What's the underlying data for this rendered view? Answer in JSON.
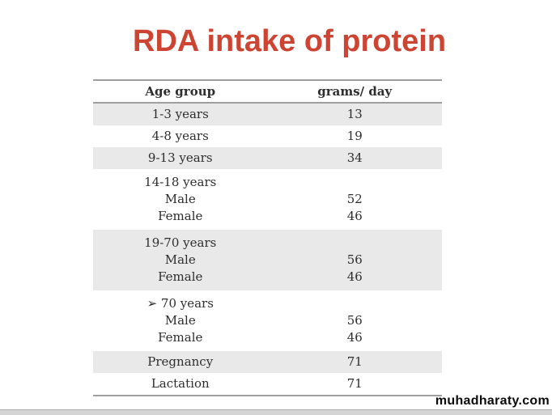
{
  "slide": {
    "title": "RDA intake of protein",
    "watermark": "muhadharaty.com",
    "title_color": "#cd4433",
    "stripe_color": "#e9e9e9",
    "rule_color": "#9e9e9e"
  },
  "table": {
    "columns": [
      "Age group",
      "grams/ day"
    ],
    "rows": [
      {
        "lines": [
          {
            "label": "1-3 years",
            "value": "13"
          }
        ]
      },
      {
        "lines": [
          {
            "label": "4-8 years",
            "value": "19"
          }
        ]
      },
      {
        "lines": [
          {
            "label": "9-13 years",
            "value": "34"
          }
        ]
      },
      {
        "lines": [
          {
            "label": "14-18 years",
            "value": ""
          },
          {
            "label": "Male",
            "value": "52"
          },
          {
            "label": "Female",
            "value": "46"
          }
        ]
      },
      {
        "lines": [
          {
            "label": "19-70 years",
            "value": ""
          },
          {
            "label": "Male",
            "value": "56"
          },
          {
            "label": "Female",
            "value": "46"
          }
        ]
      },
      {
        "lines": [
          {
            "label": "➢ 70 years",
            "value": ""
          },
          {
            "label": "Male",
            "value": "56"
          },
          {
            "label": "Female",
            "value": "46"
          }
        ]
      },
      {
        "lines": [
          {
            "label": "Pregnancy",
            "value": "71"
          }
        ]
      },
      {
        "lines": [
          {
            "label": "Lactation",
            "value": "71"
          }
        ]
      }
    ]
  }
}
